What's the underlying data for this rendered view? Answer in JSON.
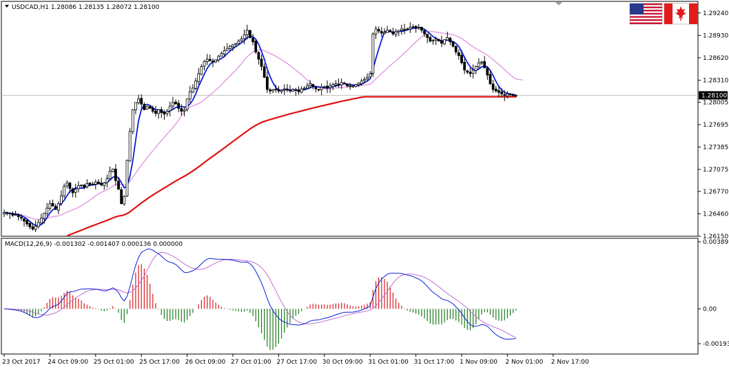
{
  "chart_data": [
    {
      "type": "candlestick",
      "title": "USDCAD,H1  1.28086 1.28135 1.28072 1.28100",
      "symbol": "USDCAD,H1",
      "ohlc_readout": [
        "1.28086",
        "1.28135",
        "1.28072",
        "1.28100"
      ],
      "ylim": [
        1.2615,
        1.294
      ],
      "y_ticks": [
        "1.29240",
        "1.28930",
        "1.28620",
        "1.28310",
        "1.28005",
        "1.27695",
        "1.27385",
        "1.27075",
        "1.26770",
        "1.26460",
        "1.26150"
      ],
      "y_tick_values": [
        1.2924,
        1.2893,
        1.2862,
        1.2831,
        1.28005,
        1.27695,
        1.27385,
        1.27075,
        1.2677,
        1.2646,
        1.2615
      ],
      "current_price": "1.28100",
      "current_price_value": 1.281,
      "x_ticks": [
        "23 Oct 2017",
        "24 Oct 09:00",
        "25 Oct 01:00",
        "25 Oct 17:00",
        "26 Oct 09:00",
        "27 Oct 01:00",
        "27 Oct 17:00",
        "30 Oct 09:00",
        "31 Oct 01:00",
        "31 Oct 17:00",
        "1 Nov 09:00",
        "2 Nov 01:00",
        "2 Nov 17:00"
      ],
      "x_tick_index": [
        0,
        16,
        32,
        48,
        64,
        80,
        96,
        112,
        128,
        144,
        160,
        176,
        192
      ],
      "close_series": [
        1.2648,
        1.2647,
        1.2646,
        1.2644,
        1.2645,
        1.2642,
        1.264,
        1.2636,
        1.2632,
        1.2628,
        1.2625,
        1.2629,
        1.2634,
        1.264,
        1.2647,
        1.2654,
        1.266,
        1.2657,
        1.2652,
        1.266,
        1.2671,
        1.2684,
        1.2689,
        1.2681,
        1.2675,
        1.268,
        1.2685,
        1.2686,
        1.2683,
        1.2688,
        1.2687,
        1.2686,
        1.269,
        1.2688,
        1.2686,
        1.2689,
        1.2695,
        1.2705,
        1.2708,
        1.2692,
        1.268,
        1.266,
        1.267,
        1.272,
        1.276,
        1.279,
        1.28,
        1.2805,
        1.2798,
        1.279,
        1.2795,
        1.2792,
        1.2788,
        1.2785,
        1.279,
        1.2786,
        1.2784,
        1.2788,
        1.2795,
        1.28,
        1.2798,
        1.2792,
        1.2788,
        1.279,
        1.2805,
        1.2815,
        1.282,
        1.283,
        1.284,
        1.285,
        1.2857,
        1.286,
        1.2858,
        1.2856,
        1.2859,
        1.2864,
        1.2868,
        1.2872,
        1.2875,
        1.2878,
        1.288,
        1.2882,
        1.2885,
        1.2888,
        1.2894,
        1.29,
        1.289,
        1.2884,
        1.287,
        1.286,
        1.285,
        1.2835,
        1.2818,
        1.2816,
        1.2818,
        1.2818,
        1.2816,
        1.2817,
        1.2819,
        1.2818,
        1.2816,
        1.2818,
        1.2817,
        1.2815,
        1.2819,
        1.282,
        1.2823,
        1.2826,
        1.2822,
        1.2819,
        1.2818,
        1.2821,
        1.2822,
        1.282,
        1.2823,
        1.2825,
        1.2826,
        1.2825,
        1.2828,
        1.2826,
        1.2823,
        1.2822,
        1.2823,
        1.2825,
        1.2827,
        1.283,
        1.2832,
        1.2835,
        1.284,
        1.2895,
        1.2902,
        1.2899,
        1.2896,
        1.2897,
        1.29,
        1.2898,
        1.2895,
        1.2898,
        1.29,
        1.2902,
        1.2901,
        1.2902,
        1.2904,
        1.2905,
        1.2903,
        1.2904,
        1.29,
        1.2895,
        1.289,
        1.2885,
        1.2886,
        1.2888,
        1.2885,
        1.2882,
        1.2887,
        1.289,
        1.2884,
        1.2878,
        1.287,
        1.2865,
        1.2855,
        1.2845,
        1.2842,
        1.284,
        1.2845,
        1.285,
        1.2855,
        1.2856,
        1.2848,
        1.2838,
        1.2826,
        1.2818,
        1.2816,
        1.2814,
        1.2812,
        1.281,
        1.2812,
        1.2811,
        1.281,
        1.281
      ],
      "series": [
        {
          "name": "",
          "kind": "fast-ma",
          "color": "#0a1fd6"
        },
        {
          "name": "",
          "kind": "mid-ma",
          "color": "#e3a0e3"
        },
        {
          "name": "",
          "kind": "slow-ma",
          "color": "#e01010"
        }
      ],
      "flags": [
        "us-flag-icon",
        "canada-flag-icon"
      ]
    },
    {
      "type": "macd",
      "title": "MACD(12,26,9) -0.001302 -0.001407 0.000136 0.000000",
      "ylim": [
        -0.0025,
        0.0039
      ],
      "y_ticks": [
        "0.003892",
        "0.00",
        "-0.00193"
      ],
      "y_tick_values": [
        0.003892,
        0.0,
        -0.00193
      ],
      "colors": {
        "positive": "#d81b1b",
        "negative": "#1a7a1a",
        "main": "#0a1fd6",
        "signal": "#c070d0"
      }
    }
  ],
  "colors": {
    "grid_line": "#c0c0c0",
    "price_label_bg": "#000000",
    "price_label_text": "#ffffff"
  },
  "ui": {
    "scroll_marker": "shift-marker-icon"
  }
}
